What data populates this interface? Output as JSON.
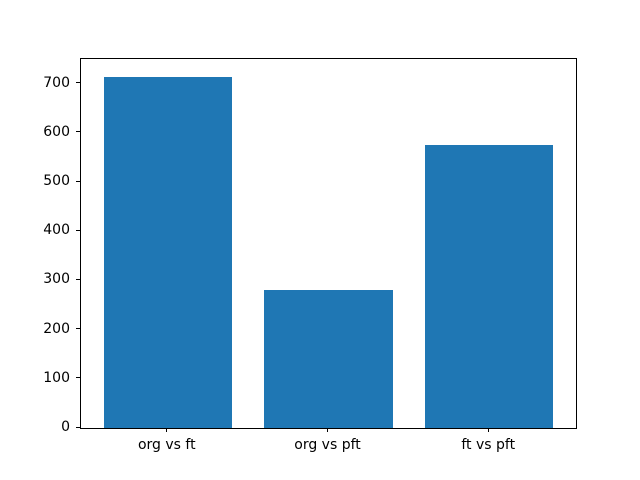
{
  "chart_data": {
    "type": "bar",
    "title": "",
    "xlabel": "",
    "ylabel": "",
    "categories": [
      "org vs ft",
      "org vs pft",
      "ft vs pft"
    ],
    "values": [
      713,
      281,
      576
    ],
    "ylim": [
      0,
      750
    ],
    "yticks": [
      0,
      100,
      200,
      300,
      400,
      500,
      600,
      700
    ],
    "bar_color": "#1f77b4",
    "background_color": "#ffffff",
    "spine_color": "#000000",
    "tick_label_color": "#000000",
    "grid": false,
    "legend": "none"
  }
}
